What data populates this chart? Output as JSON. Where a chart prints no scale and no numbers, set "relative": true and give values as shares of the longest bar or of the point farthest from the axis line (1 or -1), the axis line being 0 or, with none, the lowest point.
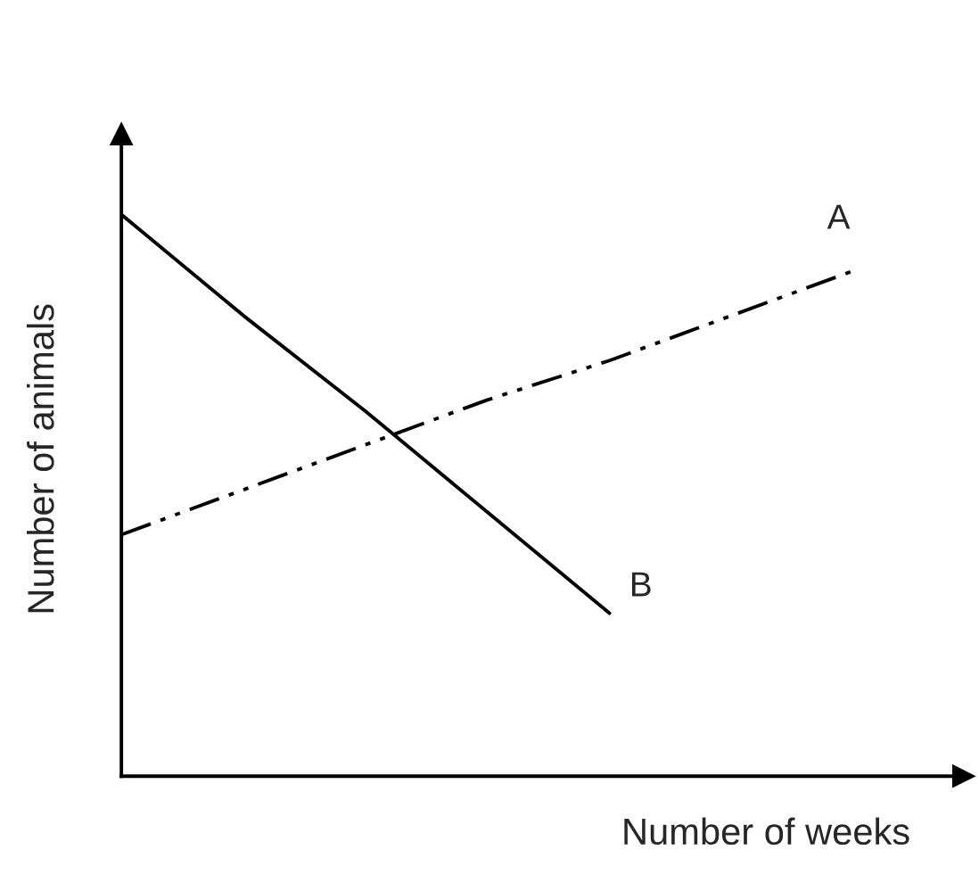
{
  "chart_data": {
    "type": "line",
    "relative": true,
    "xlabel": "Number of weeks",
    "ylabel": "Number of animals",
    "categories": [
      null,
      null,
      null,
      null,
      null,
      null,
      null
    ],
    "legend": false,
    "marker": "none",
    "series": [
      {
        "name": "A",
        "color": "#000000",
        "line_style": "dashdot",
        "values": [
          0.43,
          0.51,
          0.59,
          0.67,
          0.74,
          0.82,
          0.9
        ]
      },
      {
        "name": "B",
        "color": "#000000",
        "line_style": "solid",
        "values": [
          1,
          0.82,
          0.65,
          0.47,
          0.29,
          null,
          null
        ]
      }
    ]
  }
}
